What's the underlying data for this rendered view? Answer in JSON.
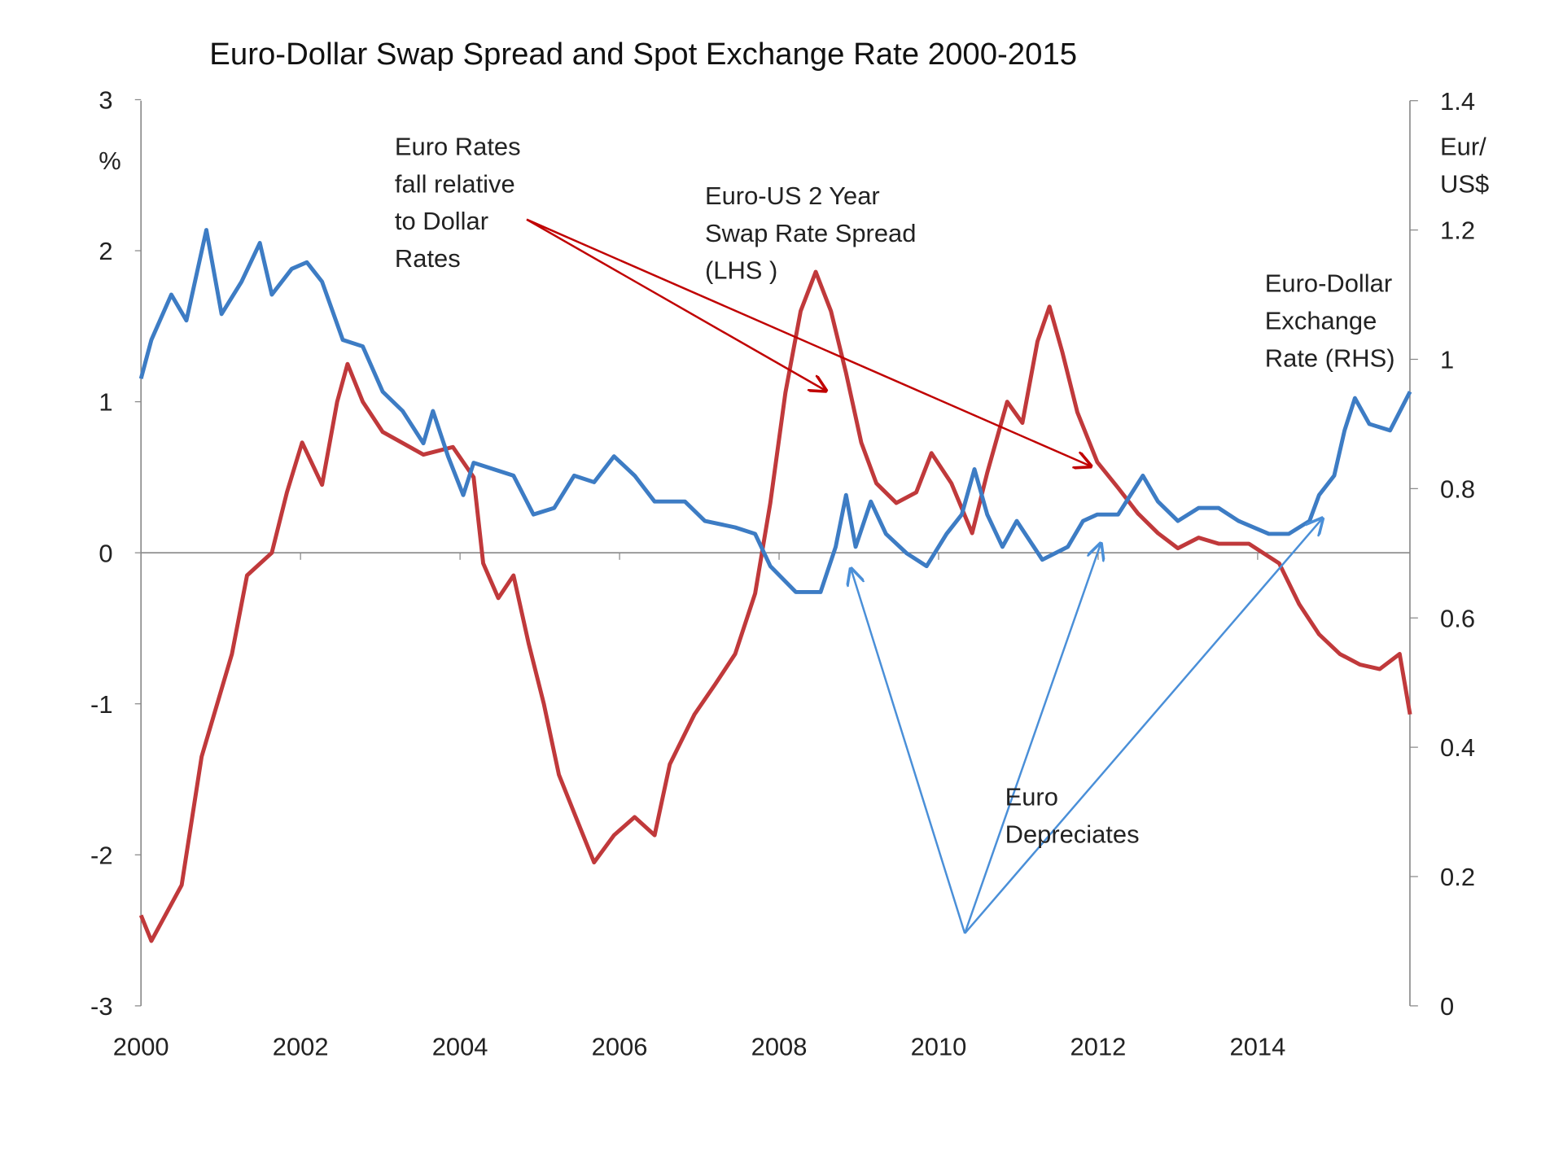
{
  "chart_data": {
    "type": "line",
    "title": "Euro-Dollar Swap Spread and Spot Exchange Rate 2000-2015",
    "x_ticks": [
      "2000",
      "2002",
      "2004",
      "2006",
      "2008",
      "2010",
      "2012",
      "2014"
    ],
    "xlim": [
      2000,
      2015.9
    ],
    "y_left": {
      "label": "%",
      "ticks": [
        "3",
        "2",
        "1",
        "0",
        "-1",
        "-2",
        "-3"
      ],
      "range": [
        -3,
        3
      ]
    },
    "y_right": {
      "label_lines": [
        "Eur/",
        "US$"
      ],
      "ticks": [
        "1.4",
        "1.2",
        "1",
        "0.8",
        "0.6",
        "0.4",
        "0.2",
        "0"
      ],
      "range": [
        0,
        1.4
      ]
    },
    "grid": false,
    "series": [
      {
        "name": "Euro-US 2 Year Swap Rate Spread (LHS)",
        "axis": "left",
        "color": "#c0393b",
        "x": [
          2000.0,
          2000.13,
          2000.51,
          2000.76,
          2001.14,
          2001.33,
          2001.64,
          2001.83,
          2002.02,
          2002.27,
          2002.46,
          2002.59,
          2002.78,
          2003.03,
          2003.54,
          2003.91,
          2004.17,
          2004.29,
          2004.48,
          2004.67,
          2004.86,
          2005.05,
          2005.24,
          2005.49,
          2005.68,
          2005.93,
          2006.19,
          2006.44,
          2006.63,
          2006.94,
          2007.2,
          2007.45,
          2007.7,
          2007.89,
          2008.08,
          2008.27,
          2008.46,
          2008.65,
          2008.84,
          2009.03,
          2009.22,
          2009.47,
          2009.72,
          2009.91,
          2010.16,
          2010.42,
          2010.61,
          2010.86,
          2011.05,
          2011.24,
          2011.39,
          2011.55,
          2011.74,
          2011.99,
          2012.25,
          2012.5,
          2012.75,
          2013.0,
          2013.26,
          2013.51,
          2013.89,
          2014.27,
          2014.52,
          2014.77,
          2015.03,
          2015.28,
          2015.53,
          2015.78,
          2015.91
        ],
        "y": [
          -2.4,
          -2.57,
          -2.2,
          -1.35,
          -0.67,
          -0.15,
          0.0,
          0.4,
          0.73,
          0.45,
          1.0,
          1.25,
          1.0,
          0.8,
          0.65,
          0.7,
          0.5,
          -0.07,
          -0.3,
          -0.15,
          -0.6,
          -1.0,
          -1.47,
          -1.8,
          -2.05,
          -1.87,
          -1.75,
          -1.87,
          -1.4,
          -1.07,
          -0.87,
          -0.67,
          -0.27,
          0.33,
          1.06,
          1.6,
          1.86,
          1.6,
          1.19,
          0.73,
          0.46,
          0.33,
          0.4,
          0.66,
          0.46,
          0.13,
          0.53,
          1.0,
          0.86,
          1.4,
          1.63,
          1.33,
          0.93,
          0.6,
          0.43,
          0.26,
          0.13,
          0.03,
          0.1,
          0.06,
          0.06,
          -0.07,
          -0.34,
          -0.54,
          -0.67,
          -0.74,
          -0.77,
          -0.67,
          -1.07
        ]
      },
      {
        "name": "Euro-Dollar Exchange Rate (RHS)",
        "axis": "right",
        "color": "#3d7cc4",
        "x": [
          2000.0,
          2000.13,
          2000.38,
          2000.57,
          2000.82,
          2001.01,
          2001.26,
          2001.49,
          2001.64,
          2001.89,
          2002.08,
          2002.27,
          2002.53,
          2002.78,
          2003.03,
          2003.28,
          2003.54,
          2003.66,
          2003.85,
          2004.04,
          2004.17,
          2004.42,
          2004.67,
          2004.92,
          2005.18,
          2005.43,
          2005.68,
          2005.93,
          2006.19,
          2006.44,
          2006.82,
          2007.07,
          2007.45,
          2007.7,
          2007.89,
          2008.21,
          2008.52,
          2008.71,
          2008.84,
          2008.96,
          2009.15,
          2009.34,
          2009.6,
          2009.85,
          2010.1,
          2010.29,
          2010.45,
          2010.61,
          2010.8,
          2010.98,
          2011.3,
          2011.62,
          2011.81,
          2011.99,
          2012.25,
          2012.56,
          2012.75,
          2013.0,
          2013.26,
          2013.51,
          2013.76,
          2014.14,
          2014.39,
          2014.65,
          2014.77,
          2014.96,
          2015.09,
          2015.22,
          2015.4,
          2015.66,
          2015.91
        ],
        "y": [
          0.97,
          1.03,
          1.1,
          1.06,
          1.2,
          1.07,
          1.12,
          1.18,
          1.1,
          1.14,
          1.15,
          1.12,
          1.03,
          1.02,
          0.95,
          0.92,
          0.87,
          0.92,
          0.85,
          0.79,
          0.84,
          0.83,
          0.82,
          0.76,
          0.77,
          0.82,
          0.81,
          0.85,
          0.82,
          0.78,
          0.78,
          0.75,
          0.74,
          0.73,
          0.68,
          0.64,
          0.64,
          0.71,
          0.79,
          0.71,
          0.78,
          0.73,
          0.7,
          0.68,
          0.73,
          0.76,
          0.83,
          0.76,
          0.71,
          0.75,
          0.69,
          0.71,
          0.75,
          0.76,
          0.76,
          0.82,
          0.78,
          0.75,
          0.77,
          0.77,
          0.75,
          0.73,
          0.73,
          0.75,
          0.79,
          0.82,
          0.89,
          0.94,
          0.9,
          0.89,
          0.95
        ]
      }
    ],
    "annotations": [
      {
        "lines": [
          "Euro Rates",
          "fall relative",
          "to Dollar",
          "Rates"
        ],
        "color": "#222222"
      },
      {
        "lines": [
          "Euro-US 2 Year",
          "Swap Rate Spread",
          "(LHS )"
        ],
        "color": "#222222"
      },
      {
        "lines": [
          "Euro-Dollar",
          "Exchange",
          "Rate (RHS)"
        ],
        "color": "#222222"
      },
      {
        "lines": [
          "Euro",
          "Depreciates"
        ],
        "color": "#222222"
      }
    ],
    "arrow_colors": {
      "red": "#c00000",
      "blue": "#4a8fd8"
    }
  }
}
